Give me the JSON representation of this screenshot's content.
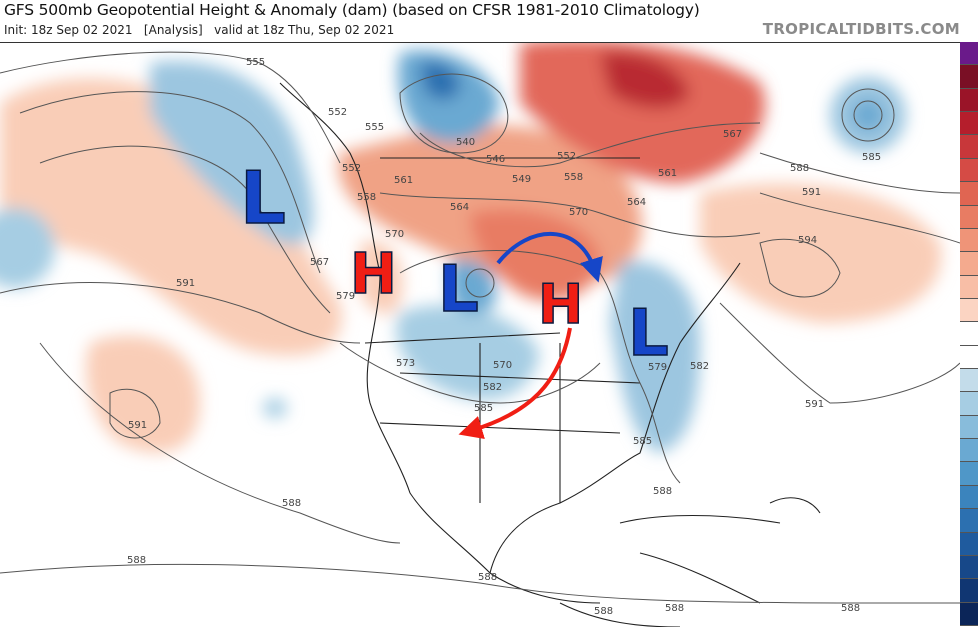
{
  "header": {
    "title": "GFS 500mb Geopotential Height & Anomaly (dam) (based on CFSR 1981-2010 Climatology)",
    "subtitle": "Init: 18z Sep 02 2021   [Analysis]   valid at 18z Thu, Sep 02 2021",
    "brand": "TROPICALTIDBITS.COM"
  },
  "map": {
    "contour_labels": [
      "555",
      "552",
      "555",
      "552",
      "558",
      "561",
      "564",
      "570",
      "567",
      "579",
      "591",
      "573",
      "570",
      "582",
      "585",
      "540",
      "546",
      "549",
      "552",
      "558",
      "570",
      "564",
      "561",
      "567",
      "588",
      "591",
      "594",
      "585",
      "582",
      "579",
      "591",
      "585",
      "588",
      "591",
      "588",
      "588",
      "588",
      "588",
      "588",
      "588"
    ],
    "annotations": {
      "systems": [
        {
          "letter": "L",
          "type": "low",
          "color": "#1646c8"
        },
        {
          "letter": "H",
          "type": "high",
          "color": "#f01e14"
        },
        {
          "letter": "L",
          "type": "low",
          "color": "#1646c8"
        },
        {
          "letter": "H",
          "type": "high",
          "color": "#f01e14"
        },
        {
          "letter": "L",
          "type": "low",
          "color": "#1646c8"
        }
      ],
      "arrows": [
        {
          "color": "#1646c8",
          "meaning": "flow-over-ridge"
        },
        {
          "color": "#f01e14",
          "meaning": "flow-southwest"
        }
      ]
    }
  },
  "colorbar": {
    "colors": [
      "#6a1a8a",
      "#7a0f25",
      "#9a1428",
      "#b51e2c",
      "#c8373a",
      "#d54b45",
      "#e06552",
      "#e87c63",
      "#ef9478",
      "#f4aa8e",
      "#f8bea6",
      "#fbd4c2",
      "#ffffff",
      "#ffffff",
      "#c3dcea",
      "#a6cde3",
      "#88bcdb",
      "#6aa9d2",
      "#4f97c8",
      "#3b84bd",
      "#2c70b0",
      "#1f5b9e",
      "#174889",
      "#103672",
      "#0b2558"
    ]
  }
}
